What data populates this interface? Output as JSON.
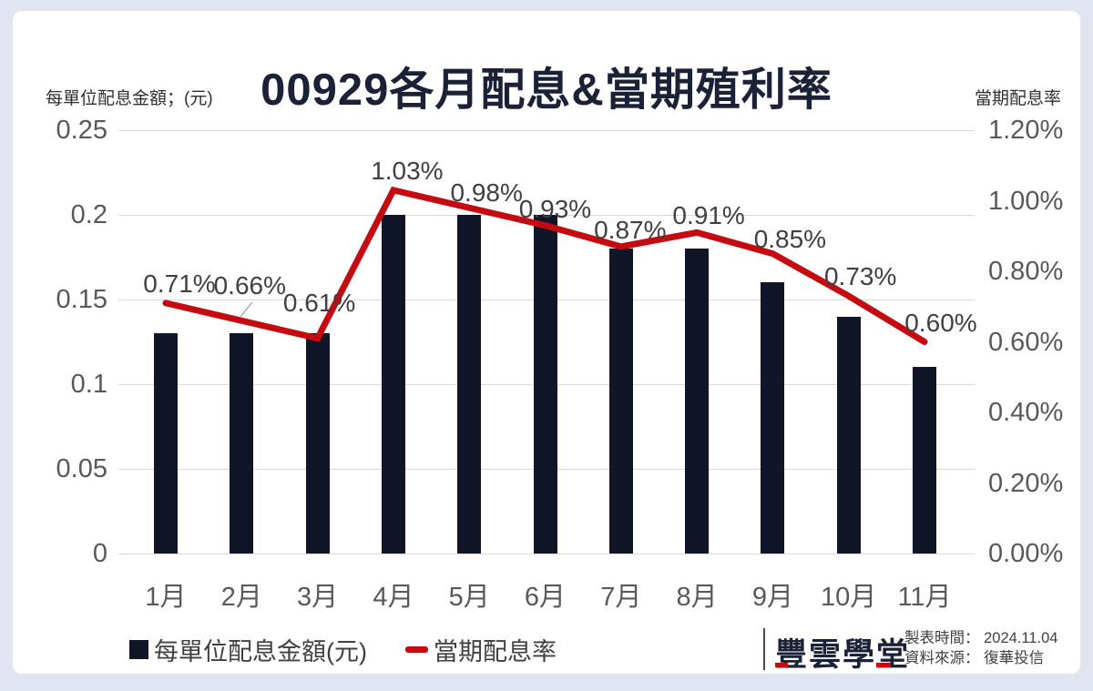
{
  "title": "00929各月配息&當期殖利率",
  "axis_headers": {
    "left": "每單位配息金額；(元)",
    "right": "當期配息率"
  },
  "chart_data": {
    "type": "bar+line combo",
    "title": "00929各月配息&當期殖利率",
    "categories": [
      "1月",
      "2月",
      "3月",
      "4月",
      "5月",
      "6月",
      "7月",
      "8月",
      "9月",
      "10月",
      "11月"
    ],
    "series": [
      {
        "name": "每單位配息金額(元)",
        "type": "bar",
        "axis": "left",
        "color": "#101627",
        "values": [
          0.13,
          0.13,
          0.13,
          0.2,
          0.2,
          0.2,
          0.18,
          0.18,
          0.16,
          0.14,
          0.11
        ]
      },
      {
        "name": "當期配息率",
        "type": "line",
        "axis": "right",
        "color": "#c50a10",
        "values": [
          0.71,
          0.66,
          0.61,
          1.03,
          0.98,
          0.93,
          0.87,
          0.91,
          0.85,
          0.73,
          0.6
        ],
        "point_labels": [
          "0.71%",
          "0.66%",
          "0.61%",
          "1.03%",
          "0.98%",
          "0.93%",
          "0.87%",
          "0.91%",
          "0.85%",
          "0.73%",
          "0.60%"
        ]
      }
    ],
    "left_axis": {
      "title": "每單位配息金額；(元)",
      "min": 0,
      "max": 0.25,
      "tick_labels": [
        "0.25",
        "0.2",
        "0.15",
        "0.1",
        "0.05",
        "0"
      ]
    },
    "right_axis": {
      "title": "當期配息率",
      "min": 0,
      "max": 1.2,
      "tick_labels": [
        "1.20%",
        "1.00%",
        "0.80%",
        "0.60%",
        "0.40%",
        "0.20%",
        "0.00%"
      ]
    },
    "grid": "horizontal",
    "legend_position": "bottom-left"
  },
  "legend": {
    "items": [
      {
        "label": "每單位配息金額(元)",
        "marker": "square",
        "color": "#101627"
      },
      {
        "label": "當期配息率",
        "marker": "dash",
        "color": "#c50a10"
      }
    ]
  },
  "footer": {
    "logo_text": "豐雲學堂",
    "made_time_label": "製表時間：",
    "made_time_value": "2024.11.04",
    "source_label": "資料來源：",
    "source_value": "復華投信"
  }
}
